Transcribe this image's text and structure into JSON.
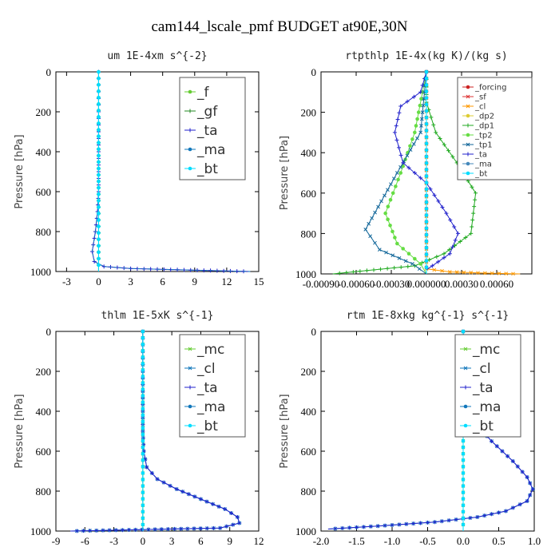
{
  "title": "cam144_lscale_pmf  BUDGET at90E,30N",
  "chart_data": [
    {
      "type": "line",
      "title": "um  1E-4xm s^{-2}",
      "ylabel": "Pressure [hPa]",
      "xlim": [
        -4,
        15
      ],
      "ylim": [
        1000,
        0
      ],
      "xticks": [
        -3,
        0,
        3,
        6,
        9,
        12,
        15
      ],
      "xtick_labels": [
        "-3",
        "0",
        "3",
        "6",
        "9",
        "12",
        "15"
      ],
      "yticks": [
        0,
        200,
        400,
        600,
        800,
        1000
      ],
      "legend_font": 17,
      "series": [
        {
          "name": "_f",
          "color": "#66cc33",
          "marker": "o",
          "x": [
            0,
            0
          ],
          "y": [
            0,
            1000
          ]
        },
        {
          "name": "_gf",
          "color": "#228822",
          "marker": "+",
          "x": [
            0,
            0
          ],
          "y": [
            0,
            1000
          ]
        },
        {
          "name": "_ta",
          "color": "#2222cc",
          "marker": "+",
          "x": [
            0,
            0,
            -0.1,
            -0.3,
            -0.6,
            -0.4,
            0.5,
            3,
            8,
            14.2
          ],
          "y": [
            0,
            600,
            700,
            800,
            900,
            950,
            975,
            985,
            992,
            1000
          ]
        },
        {
          "name": "_ma",
          "color": "#1177bb",
          "marker": "-",
          "x": [
            0,
            0,
            -0.1,
            -0.3,
            -0.6,
            -0.4,
            0.5,
            3,
            8,
            14.2
          ],
          "y": [
            0,
            600,
            700,
            800,
            900,
            950,
            975,
            985,
            992,
            1000
          ]
        },
        {
          "name": "_bt",
          "color": "#00ddff",
          "marker": "o",
          "x": [
            0,
            0
          ],
          "y": [
            0,
            1000
          ]
        }
      ]
    },
    {
      "type": "line",
      "title": "rtpthlp  1E-4x(kg K)/(kg s)",
      "ylabel": "Pressure [hPa]",
      "xlim": [
        -0.0009,
        0.0009
      ],
      "ylim": [
        1000,
        0
      ],
      "xticks": [
        -0.0009,
        -0.0006,
        -0.0003,
        0,
        0.0003,
        0.0006
      ],
      "xtick_labels": [
        "-0.00090",
        "-0.00060",
        "-0.00030",
        "0.000000",
        "0.00030",
        "0.00060"
      ],
      "yticks": [
        0,
        200,
        400,
        600,
        800,
        1000
      ],
      "legend_font": 10,
      "series": [
        {
          "name": "_forcing",
          "color": "#cc2222",
          "marker": "o",
          "x": [
            0,
            0
          ],
          "y": [
            0,
            1000
          ]
        },
        {
          "name": "_sf",
          "color": "#dd3333",
          "marker": "x",
          "x": [
            0,
            0
          ],
          "y": [
            0,
            1000
          ]
        },
        {
          "name": "_cl",
          "color": "#ff9900",
          "marker": "x",
          "x": [
            0,
            0,
            0.0002,
            0.0005,
            0.0008
          ],
          "y": [
            0,
            975,
            990,
            996,
            1000
          ]
        },
        {
          "name": "_dp2",
          "color": "#ddcc33",
          "marker": "-",
          "x": [
            0,
            0
          ],
          "y": [
            0,
            1000
          ]
        },
        {
          "name": "_dp1",
          "color": "#22aa22",
          "marker": "+",
          "x": [
            0,
            0,
            8e-05,
            0.00026,
            0.00042,
            0.00038,
            0.00015,
            -0.0001,
            -0.0008
          ],
          "y": [
            0,
            150,
            300,
            450,
            600,
            800,
            900,
            960,
            1000
          ]
        },
        {
          "name": "_tp2",
          "color": "#66dd44",
          "marker": "o",
          "x": [
            0,
            -0.0001,
            -0.00022,
            -0.00035,
            -0.00025,
            -5e-05,
            0
          ],
          "y": [
            0,
            300,
            500,
            700,
            850,
            950,
            1000
          ]
        },
        {
          "name": "_tp1",
          "color": "#116699",
          "marker": "x",
          "x": [
            0,
            -5e-05,
            -0.00025,
            -0.00052,
            -0.0004,
            -0.00012,
            0
          ],
          "y": [
            0,
            300,
            500,
            780,
            880,
            950,
            1000
          ]
        },
        {
          "name": "_ta",
          "color": "#2222cc",
          "marker": "+",
          "x": [
            0,
            -5e-05,
            -0.00022,
            -0.00027,
            -0.0002,
            0,
            0.00017,
            0.00027,
            0.0002,
            0
          ],
          "y": [
            0,
            100,
            170,
            300,
            450,
            550,
            700,
            800,
            900,
            980
          ]
        },
        {
          "name": "_ma",
          "color": "#4488bb",
          "marker": "-",
          "x": [
            0,
            0
          ],
          "y": [
            0,
            1000
          ]
        },
        {
          "name": "_bt",
          "color": "#00ddff",
          "marker": "o",
          "x": [
            0,
            0
          ],
          "y": [
            0,
            1000
          ]
        }
      ]
    },
    {
      "type": "line",
      "title": "thlm  1E-5xK s^{-1}",
      "ylabel": "Pressure [hPa]",
      "xlim": [
        -9,
        12
      ],
      "ylim": [
        1000,
        0
      ],
      "xticks": [
        -9,
        -6,
        -3,
        0,
        3,
        6,
        9,
        12
      ],
      "xtick_labels": [
        "-9",
        "-6",
        "-3",
        "0",
        "3",
        "6",
        "9",
        "12"
      ],
      "yticks": [
        0,
        200,
        400,
        600,
        800,
        1000
      ],
      "legend_font": 17,
      "series": [
        {
          "name": "_mc",
          "color": "#66cc33",
          "marker": "x",
          "x": [
            0,
            0
          ],
          "y": [
            0,
            1000
          ]
        },
        {
          "name": "_cl",
          "color": "#1177bb",
          "marker": "x",
          "x": [
            0,
            0,
            0.1,
            0.4,
            1.5,
            3.5,
            6,
            8.5,
            9.8,
            10,
            8,
            -7.5
          ],
          "y": [
            0,
            500,
            600,
            680,
            740,
            790,
            840,
            890,
            930,
            960,
            985,
            1000
          ]
        },
        {
          "name": "_ta",
          "color": "#2222cc",
          "marker": "+",
          "x": [
            0,
            0,
            0.1,
            0.4,
            1.5,
            3.5,
            6,
            8.5,
            9.8,
            10,
            8,
            -7.5
          ],
          "y": [
            0,
            500,
            600,
            680,
            740,
            790,
            840,
            890,
            930,
            960,
            985,
            1000
          ]
        },
        {
          "name": "_ma",
          "color": "#1177bb",
          "marker": "-",
          "x": [
            0,
            0
          ],
          "y": [
            0,
            1000
          ]
        },
        {
          "name": "_bt",
          "color": "#00ddff",
          "marker": "o",
          "x": [
            0,
            0
          ],
          "y": [
            0,
            1000
          ]
        }
      ]
    },
    {
      "type": "line",
      "title": "rtm  1E-8xkg kg^{-1} s^{-1}",
      "ylabel": "Pressure [hPa]",
      "xlim": [
        -2.0,
        1.0
      ],
      "ylim": [
        1000,
        0
      ],
      "xticks": [
        -2.0,
        -1.5,
        -1.0,
        -0.5,
        0.0,
        0.5,
        1.0
      ],
      "xtick_labels": [
        "-2.0",
        "-1.5",
        "-1.0",
        "-0.5",
        "0.0",
        "0.5",
        "1.0"
      ],
      "yticks": [
        0,
        200,
        400,
        600,
        800,
        1000
      ],
      "legend_font": 17,
      "series": [
        {
          "name": "_mc",
          "color": "#66cc33",
          "marker": "x",
          "x": [
            0,
            0
          ],
          "y": [
            0,
            1000
          ]
        },
        {
          "name": "_cl",
          "color": "#1177bb",
          "marker": "x",
          "x": [
            0,
            0.02,
            0.1,
            0.12,
            0.08,
            0.05,
            0.15,
            0.4,
            0.7,
            0.9,
            0.98,
            0.9,
            0.6,
            0.2,
            -0.4,
            -1.2,
            -1.9
          ],
          "y": [
            0,
            150,
            200,
            260,
            320,
            380,
            450,
            550,
            650,
            730,
            790,
            850,
            900,
            930,
            955,
            975,
            990
          ]
        },
        {
          "name": "_ta",
          "color": "#2222cc",
          "marker": "+",
          "x": [
            0,
            0.02,
            0.1,
            0.12,
            0.08,
            0.05,
            0.15,
            0.4,
            0.7,
            0.9,
            0.98,
            0.9,
            0.6,
            0.2,
            -0.4,
            -1.2,
            -1.9
          ],
          "y": [
            0,
            150,
            200,
            260,
            320,
            380,
            450,
            550,
            650,
            730,
            790,
            850,
            900,
            930,
            955,
            975,
            990
          ]
        },
        {
          "name": "_ma",
          "color": "#1177bb",
          "marker": "-",
          "x": [
            0,
            0
          ],
          "y": [
            0,
            1000
          ]
        },
        {
          "name": "_bt",
          "color": "#00ddff",
          "marker": "o",
          "x": [
            0,
            0
          ],
          "y": [
            0,
            1000
          ]
        }
      ]
    }
  ]
}
